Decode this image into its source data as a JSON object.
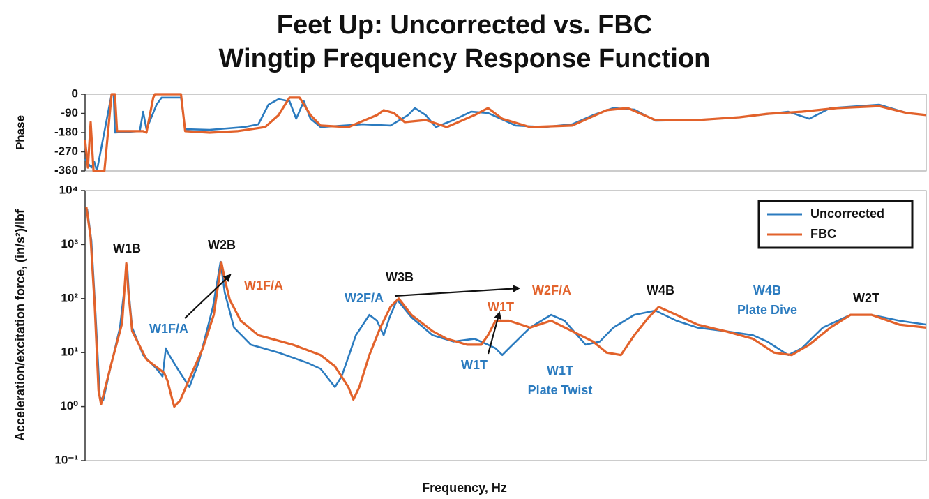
{
  "chart_data": [
    {
      "type": "line",
      "title": "Feet Up: Uncorrected vs. FBC",
      "subtitle": "Wingtip Frequency Response Function",
      "ylabel": "Phase",
      "xlim": [
        0,
        100
      ],
      "ylim": [
        -360,
        0
      ],
      "yticks": [
        0,
        -90,
        -180,
        -270,
        -360
      ],
      "series": [
        {
          "color": "#2b7bbf",
          "x": [
            0,
            0.4,
            0.75,
            1.1,
            1.4,
            3.15,
            3.4,
            3.55,
            6.5,
            6.9,
            7.3,
            8.5,
            9.1,
            11.4,
            11.9,
            14.8,
            18.9,
            20.6,
            21.8,
            23,
            24.3,
            25.1,
            26,
            26.8,
            28,
            33,
            36.3,
            38.4,
            39.2,
            40.5,
            41.7,
            43.8,
            45.9,
            47.9,
            51.2,
            54.6,
            57.9,
            60.4,
            62.8,
            65.3,
            67.8,
            72.8,
            77.8,
            83.6,
            86.1,
            88.6,
            94.4,
            97.7,
            100
          ],
          "values": [
            -304,
            -327,
            -344,
            -318,
            -360,
            0,
            0,
            -180,
            -173,
            -82,
            -164,
            -49,
            -16,
            -16,
            -164,
            -167,
            -154,
            -141,
            -49,
            -23,
            -33,
            -115,
            -33,
            -115,
            -154,
            -141,
            -147,
            -98,
            -65,
            -98,
            -154,
            -121,
            -82,
            -88,
            -147,
            -154,
            -141,
            -98,
            -65,
            -72,
            -124,
            -121,
            -108,
            -82,
            -115,
            -65,
            -49,
            -88,
            -98
          ]
        },
        {
          "color": "#e2622b",
          "x": [
            0,
            0.33,
            0.66,
            1,
            2.3,
            3.15,
            3.55,
            3.8,
            6.9,
            7.3,
            8.1,
            8.3,
            11.4,
            11.9,
            14.8,
            18.1,
            21.4,
            23,
            24.3,
            25.5,
            26.8,
            28,
            31.3,
            34.7,
            35.5,
            36.7,
            38,
            40.5,
            43,
            46.3,
            47.9,
            49.6,
            52.9,
            57.9,
            62,
            64.5,
            67.8,
            72.8,
            77.8,
            81.1,
            85.2,
            89.4,
            94.4,
            97.7,
            100
          ],
          "values": [
            -213,
            -344,
            -131,
            -360,
            -360,
            0,
            0,
            -173,
            -173,
            -180,
            -16,
            0,
            0,
            -173,
            -180,
            -173,
            -154,
            -98,
            -16,
            -16,
            -98,
            -147,
            -154,
            -98,
            -75,
            -88,
            -131,
            -121,
            -154,
            -98,
            -65,
            -115,
            -154,
            -147,
            -75,
            -65,
            -121,
            -121,
            -108,
            -92,
            -82,
            -65,
            -56,
            -88,
            -98
          ]
        }
      ]
    },
    {
      "type": "line",
      "log_y": true,
      "ylabel": "Acceleration/excitation force, (in/s²)/lbf",
      "xlabel": "Frequency, Hz",
      "xlim": [
        0,
        100
      ],
      "ylim": [
        0.1,
        10000
      ],
      "yticks": [
        {
          "value": 10000,
          "label": "10⁴"
        },
        {
          "value": 1000,
          "label": "10³"
        },
        {
          "value": 100,
          "label": "10²"
        },
        {
          "value": 10,
          "label": "10¹"
        },
        {
          "value": 1,
          "label": "10⁰"
        },
        {
          "value": 0.1,
          "label": "10⁻¹"
        }
      ],
      "legend": "upper right",
      "series": [
        {
          "name": "Uncorrected",
          "color": "#2b7bbf",
          "x": [
            0.25,
            0.75,
            1.25,
            1.75,
            2.15,
            3.15,
            4.15,
            4.8,
            5,
            5.2,
            5.6,
            6.9,
            8.5,
            9.2,
            9.6,
            10,
            11,
            12.4,
            13.5,
            15.2,
            16.1,
            16.6,
            17.7,
            19.7,
            23,
            26.4,
            28,
            29.7,
            30.5,
            32.2,
            33.8,
            34.7,
            35.5,
            36.2,
            37.1,
            38.8,
            41.3,
            43.8,
            46.3,
            47.9,
            48.8,
            49.6,
            50.4,
            52.9,
            55.4,
            57,
            59.5,
            61.2,
            62.8,
            65.3,
            67.8,
            70.3,
            72.8,
            76.1,
            79.4,
            81.1,
            83.6,
            85.2,
            87.7,
            91,
            93.5,
            96.8,
            100
          ],
          "values": [
            4500,
            1200,
            50,
            1.5,
            1.3,
            6.5,
            29,
            230,
            420,
            130,
            29,
            9,
            5,
            3.6,
            12,
            9,
            5,
            2.3,
            6.5,
            70,
            480,
            130,
            29,
            14,
            10,
            6.5,
            5,
            2.3,
            3.6,
            21,
            50,
            39,
            21,
            45,
            95,
            45,
            21,
            16,
            18,
            14,
            12,
            9,
            12,
            29,
            50,
            39,
            14,
            16,
            29,
            50,
            60,
            39,
            29,
            25,
            21,
            16,
            9,
            12,
            29,
            50,
            50,
            39,
            33
          ]
        },
        {
          "name": "FBC",
          "color": "#e2622b",
          "x": [
            0.15,
            0.65,
            1.15,
            1.6,
            1.9,
            3.15,
            4.4,
            4.9,
            5.15,
            5.6,
            7.3,
            9.4,
            9.8,
            10.2,
            10.6,
            11.3,
            12.3,
            14,
            15.3,
            16.2,
            16.6,
            17.2,
            18.5,
            20.6,
            24.7,
            28,
            29.7,
            31.3,
            31.9,
            32.6,
            33.8,
            35.1,
            36.3,
            37.3,
            38.8,
            41.3,
            43,
            45.4,
            47.1,
            47.9,
            48.8,
            50.4,
            52.9,
            55.4,
            57.9,
            60.4,
            62,
            63.7,
            65.3,
            67,
            68.2,
            70.3,
            72.8,
            76.1,
            79.4,
            81.9,
            84,
            86.1,
            88.6,
            91,
            93.5,
            96.8,
            100
          ],
          "values": [
            5000,
            1400,
            70,
            2,
            1.1,
            6.5,
            35,
            450,
            130,
            25,
            7.5,
            4.2,
            3,
            1.7,
            1,
            1.3,
            3,
            12,
            50,
            470,
            230,
            95,
            39,
            21,
            14,
            9,
            5.6,
            2.3,
            1.35,
            2.3,
            9,
            29,
            70,
            100,
            50,
            25,
            18,
            14,
            14,
            21,
            39,
            39,
            29,
            39,
            25,
            16,
            10,
            9,
            21,
            45,
            70,
            50,
            33,
            25,
            18,
            10,
            9,
            14,
            29,
            50,
            50,
            33,
            29
          ]
        }
      ],
      "annotations": [
        {
          "lines": [
            "W1B"
          ],
          "color": "#111111"
        },
        {
          "lines": [
            "W2B"
          ],
          "color": "#111111"
        },
        {
          "lines": [
            "W1F/A"
          ],
          "color": "#2b7bbf"
        },
        {
          "lines": [
            "W1F/A"
          ],
          "color": "#e2622b"
        },
        {
          "lines": [
            "W3B"
          ],
          "color": "#111111"
        },
        {
          "lines": [
            "W2F/A"
          ],
          "color": "#2b7bbf"
        },
        {
          "lines": [
            "W2F/A"
          ],
          "color": "#e2622b"
        },
        {
          "lines": [
            "W1T"
          ],
          "color": "#e2622b"
        },
        {
          "lines": [
            "W1T"
          ],
          "color": "#2b7bbf"
        },
        {
          "lines": [
            "W1T",
            "Plate Twist"
          ],
          "color": "#2b7bbf"
        },
        {
          "lines": [
            "W4B"
          ],
          "color": "#111111"
        },
        {
          "lines": [
            "W4B",
            "Plate Dive"
          ],
          "color": "#2b7bbf"
        },
        {
          "lines": [
            "W2T"
          ],
          "color": "#111111"
        }
      ]
    }
  ]
}
